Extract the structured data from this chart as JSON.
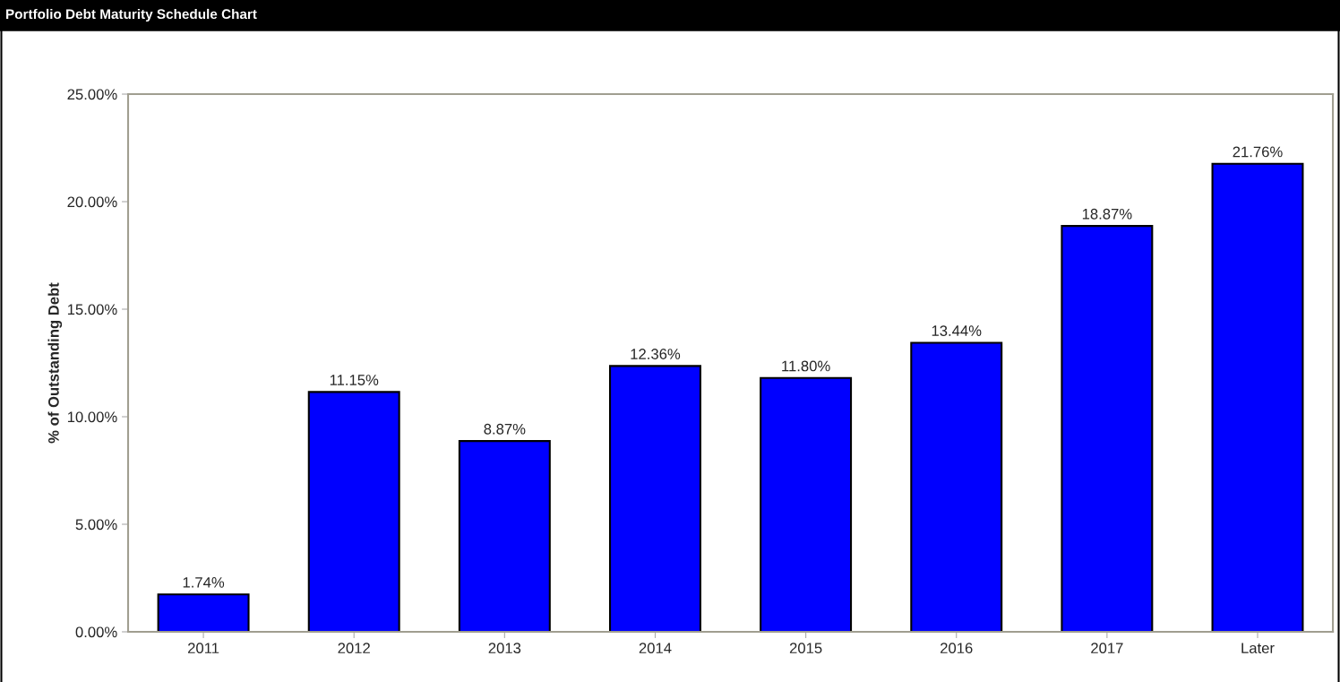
{
  "chart_data": {
    "type": "bar",
    "title": "Portfolio Debt Maturity Schedule Chart",
    "ylabel": "% of Outstanding Debt",
    "categories": [
      "2011",
      "2012",
      "2013",
      "2014",
      "2015",
      "2016",
      "2017",
      "Later"
    ],
    "values": [
      1.74,
      11.15,
      8.87,
      12.36,
      11.8,
      13.44,
      18.87,
      21.76
    ],
    "value_labels": [
      "1.74%",
      "11.15%",
      "8.87%",
      "12.36%",
      "11.80%",
      "13.44%",
      "18.87%",
      "21.76%"
    ],
    "color": "#0000ff",
    "ylim": [
      0,
      25
    ],
    "yticks": [
      {
        "value": 0,
        "label": "0.00%"
      },
      {
        "value": 5,
        "label": "5.00%"
      },
      {
        "value": 10,
        "label": "10.00%"
      },
      {
        "value": 15,
        "label": "15.00%"
      },
      {
        "value": 20,
        "label": "20.00%"
      },
      {
        "value": 25,
        "label": "25.00%"
      }
    ],
    "grid": false,
    "legend": false
  }
}
